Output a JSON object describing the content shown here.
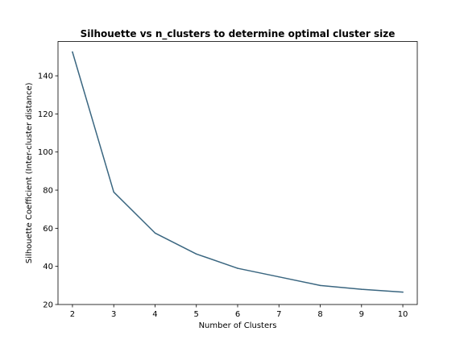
{
  "chart_data": {
    "type": "line",
    "title": "Silhouette vs n_clusters to determine optimal cluster size",
    "xlabel": "Number of Clusters",
    "ylabel": "Silhouette Coefficient (Inter-cluster distance)",
    "x": [
      2,
      3,
      4,
      5,
      6,
      7,
      8,
      9,
      10
    ],
    "series": [
      {
        "values": [
          152.5,
          79,
          57.5,
          46.5,
          39,
          34.5,
          30,
          28,
          26.5
        ]
      }
    ],
    "xlim": [
      1.65,
      10.35
    ],
    "ylim": [
      20,
      158
    ],
    "xticks": [
      2,
      3,
      4,
      5,
      6,
      7,
      8,
      9,
      10
    ],
    "yticks": [
      20,
      40,
      60,
      80,
      100,
      120,
      140
    ],
    "grid": false,
    "colors": {
      "line": "#3a6680"
    }
  }
}
